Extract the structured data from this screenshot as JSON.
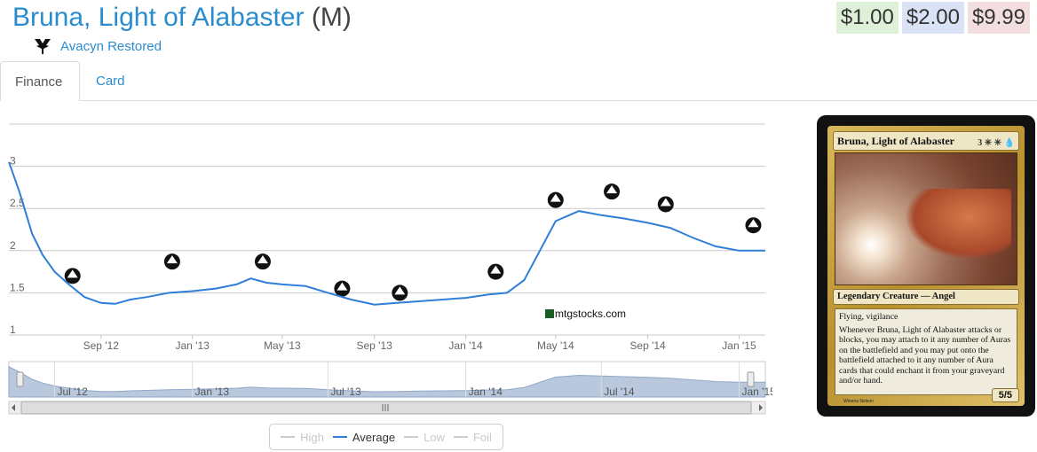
{
  "card_title": {
    "name": "Bruna, Light of Alabaster",
    "rarity": "(M)"
  },
  "set": {
    "name": "Avacyn Restored",
    "icon": "avacyn-restored-set-icon"
  },
  "prices": [
    {
      "label": "$1.00",
      "bg": "#dff0d8"
    },
    {
      "label": "$2.00",
      "bg": "#d9e3f5"
    },
    {
      "label": "$9.99",
      "bg": "#f2dede"
    }
  ],
  "tabs": [
    {
      "label": "Finance"
    },
    {
      "label": "Card"
    }
  ],
  "colors": {
    "link": "#2a8ccf",
    "series": "#2f7ed8",
    "navigator_fill": "#b9c8dc"
  },
  "chart_data": {
    "type": "line",
    "series": [
      {
        "name": "Average",
        "x": [
          "2012-05-01",
          "2012-05-15",
          "2012-06-01",
          "2012-06-15",
          "2012-07-01",
          "2012-07-20",
          "2012-08-10",
          "2012-09-01",
          "2012-09-20",
          "2012-10-10",
          "2012-11-01",
          "2012-12-01",
          "2013-01-01",
          "2013-02-01",
          "2013-03-01",
          "2013-03-20",
          "2013-04-10",
          "2013-05-01",
          "2013-06-01",
          "2013-07-01",
          "2013-08-01",
          "2013-09-01",
          "2013-10-01",
          "2013-11-01",
          "2013-12-01",
          "2014-01-01",
          "2014-02-01",
          "2014-02-25",
          "2014-03-20",
          "2014-04-10",
          "2014-05-01",
          "2014-06-01",
          "2014-07-01",
          "2014-08-01",
          "2014-09-01",
          "2014-10-01",
          "2014-11-01",
          "2014-12-01",
          "2015-01-01",
          "2015-02-05"
        ],
        "values": [
          3.05,
          2.7,
          2.2,
          1.95,
          1.75,
          1.6,
          1.45,
          1.38,
          1.37,
          1.42,
          1.45,
          1.5,
          1.52,
          1.55,
          1.6,
          1.67,
          1.62,
          1.6,
          1.58,
          1.5,
          1.42,
          1.36,
          1.38,
          1.4,
          1.42,
          1.44,
          1.48,
          1.5,
          1.65,
          2.0,
          2.35,
          2.47,
          2.42,
          2.38,
          2.33,
          2.27,
          2.15,
          2.05,
          2.0,
          2.0
        ]
      }
    ],
    "y_ticks": [
      "1",
      "1.5",
      "2",
      "2.5",
      "3"
    ],
    "ylim": [
      1,
      3.5
    ],
    "x_ticks": [
      "Sep '12",
      "Jan '13",
      "May '13",
      "Sep '13",
      "Jan '14",
      "May '14",
      "Sep '14",
      "Jan '15"
    ],
    "navigator_ticks": [
      "Jul '12",
      "Jan '13",
      "Jul '13",
      "Jan '14",
      "Jul '14",
      "Jan '15"
    ],
    "watermark": "mtgstocks.com",
    "set_markers": [
      {
        "icon": "m13-set-icon",
        "date": "2012-07-25",
        "level": 1.7
      },
      {
        "icon": "return-to-ravnica-set-icon",
        "date": "2012-12-05",
        "level": 1.87
      },
      {
        "icon": "gatecrash-set-icon",
        "date": "2013-04-05",
        "level": 1.87
      },
      {
        "icon": "m14-set-icon",
        "date": "2013-07-20",
        "level": 1.55
      },
      {
        "icon": "theros-set-icon",
        "date": "2013-10-05",
        "level": 1.5
      },
      {
        "icon": "born-of-the-gods-set-icon",
        "date": "2014-02-10",
        "level": 1.75
      },
      {
        "icon": "journey-into-nyx-set-icon",
        "date": "2014-05-01",
        "level": 2.6
      },
      {
        "icon": "m15-set-icon",
        "date": "2014-07-15",
        "level": 2.7
      },
      {
        "icon": "khans-of-tarkir-set-icon",
        "date": "2014-09-25",
        "level": 2.55
      },
      {
        "icon": "fate-reforged-set-icon",
        "date": "2015-01-20",
        "level": 2.3
      }
    ]
  },
  "legend": [
    {
      "label": "High",
      "on": false
    },
    {
      "label": "Average",
      "on": true
    },
    {
      "label": "Low",
      "on": false
    },
    {
      "label": "Foil",
      "on": false
    }
  ],
  "card_image": {
    "name": "Bruna, Light of Alabaster",
    "cost": "3 ✳ ✳ 💧",
    "type_line": "Legendary Creature — Angel",
    "rules": [
      "Flying, vigilance",
      "Whenever Bruna, Light of Alabaster attacks or blocks, you may attach to it any number of Auras on the battlefield and you may put onto the battlefield attached to it any number of Aura cards that could enchant it from your graveyard and/or hand."
    ],
    "power_toughness": "5/5",
    "artist": "Winona Nelson"
  }
}
